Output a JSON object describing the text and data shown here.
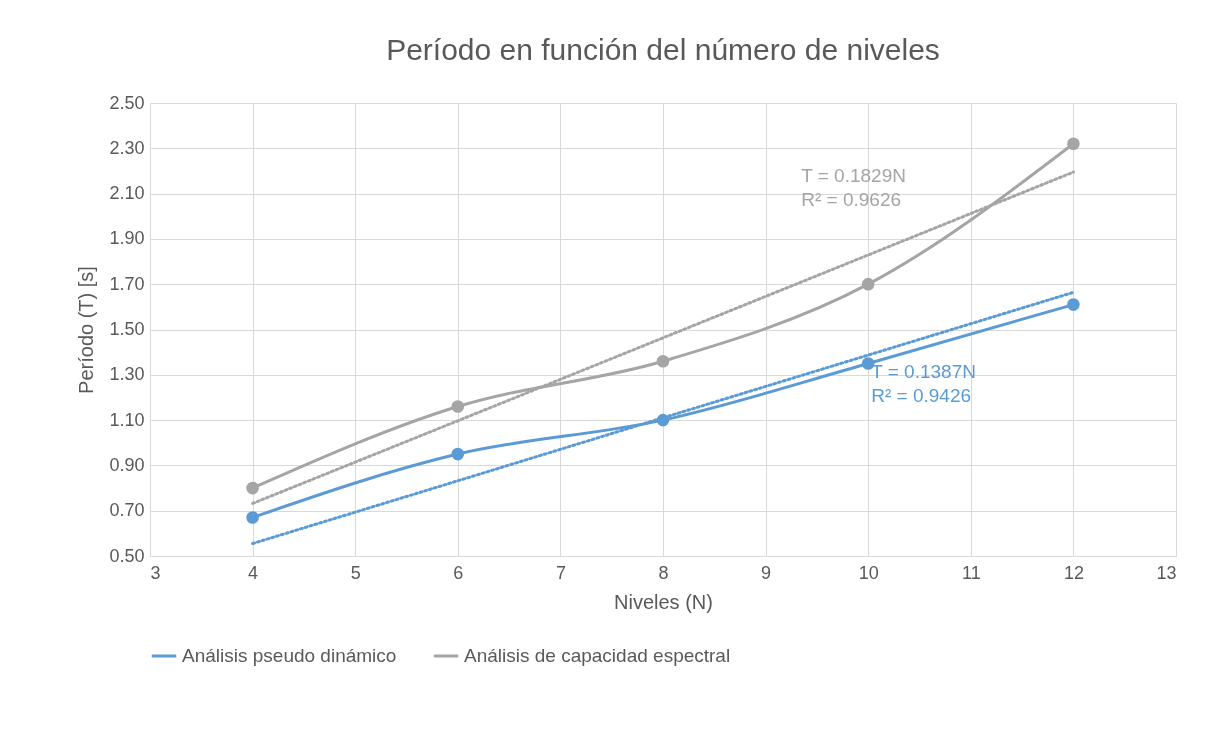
{
  "chart_data": {
    "type": "line",
    "title": "Período en función del número de niveles",
    "xlabel": "Niveles (N)",
    "ylabel": "Período (T) [s]",
    "x": [
      4,
      6,
      8,
      10,
      12
    ],
    "series": [
      {
        "name": "Análisis pseudo dinámico",
        "color": "#5b9bd5",
        "values": [
          0.67,
          0.95,
          1.1,
          1.35,
          1.61
        ]
      },
      {
        "name": "Análisis de capacidad espectral",
        "color": "#a5a5a5",
        "values": [
          0.8,
          1.16,
          1.36,
          1.7,
          2.32
        ]
      },
      {
        "color": "#5b9bd5",
        "values": [
          0.555,
          0.832,
          1.11,
          1.387,
          1.664
        ],
        "marker": "none",
        "line_style": "dotted"
      },
      {
        "color": "#a5a5a5",
        "values": [
          0.732,
          1.097,
          1.463,
          1.829,
          2.195
        ],
        "marker": "none",
        "line_style": "dotted"
      }
    ],
    "xlim": [
      3,
      13
    ],
    "xticks": [
      3,
      4,
      5,
      6,
      7,
      8,
      9,
      10,
      11,
      12,
      13
    ],
    "ylim": [
      0.5,
      2.5
    ],
    "yticks": [
      {
        "value": 0.5,
        "label": "0.50"
      },
      {
        "value": 0.7,
        "label": "0.70"
      },
      {
        "value": 0.9,
        "label": "0.90"
      },
      {
        "value": 1.1,
        "label": "1.10"
      },
      {
        "value": 1.3,
        "label": "1.30"
      },
      {
        "value": 1.5,
        "label": "1.50"
      },
      {
        "value": 1.7,
        "label": "1.70"
      },
      {
        "value": 1.9,
        "label": "1.90"
      },
      {
        "value": 2.1,
        "label": "2.10"
      },
      {
        "value": 2.3,
        "label": "2.30"
      },
      {
        "value": 2.5,
        "label": "2.50"
      }
    ],
    "annotations": [
      "T = 0.1387N\nR² = 0.9426",
      "T = 0.1829N\nR² = 0.9626"
    ],
    "grid": true,
    "legend": "bottom",
    "marker": "circle",
    "line_style": "solid"
  }
}
